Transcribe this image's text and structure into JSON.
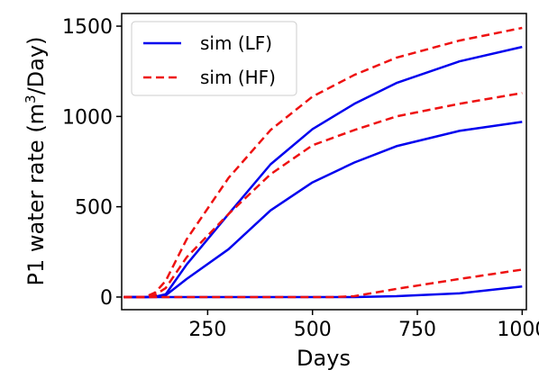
{
  "chart_data": {
    "type": "line",
    "xlabel": "Days",
    "ylabel_main": "P1 water rate (m",
    "ylabel_sup": "3",
    "ylabel_end": "/Day)",
    "xlim": [
      45,
      1010
    ],
    "ylim": [
      -70,
      1570
    ],
    "xticks": [
      250,
      500,
      750,
      1000
    ],
    "yticks": [
      0,
      500,
      1000,
      1500
    ],
    "grid": false,
    "legend_position": "top-left",
    "legend": [
      {
        "label": "sim (LF)",
        "color": "#0000ee",
        "style": "solid"
      },
      {
        "label": "sim (HF)",
        "color": "#ee1111",
        "style": "dashed"
      }
    ],
    "series": [
      {
        "group": "LF",
        "color": "#0000ee",
        "dashed": false,
        "x": [
          50,
          100,
          125,
          150,
          200,
          300,
          400,
          500,
          600,
          700,
          850,
          1000
        ],
        "y": [
          0,
          0,
          2,
          15,
          180,
          460,
          735,
          930,
          1070,
          1185,
          1305,
          1385
        ]
      },
      {
        "group": "LF",
        "color": "#0000ee",
        "dashed": false,
        "x": [
          50,
          100,
          125,
          150,
          200,
          300,
          400,
          500,
          600,
          700,
          850,
          1000
        ],
        "y": [
          0,
          0,
          1,
          10,
          100,
          265,
          480,
          635,
          745,
          835,
          920,
          970
        ]
      },
      {
        "group": "LF",
        "color": "#0000ee",
        "dashed": false,
        "x": [
          50,
          100,
          150,
          200,
          300,
          400,
          500,
          600,
          700,
          850,
          1000
        ],
        "y": [
          0,
          0,
          0,
          0,
          0,
          0,
          0,
          0,
          5,
          20,
          58
        ]
      },
      {
        "group": "HF",
        "color": "#ee1111",
        "dashed": true,
        "x": [
          50,
          100,
          125,
          150,
          200,
          300,
          400,
          500,
          600,
          700,
          850,
          1000
        ],
        "y": [
          0,
          0,
          25,
          90,
          320,
          660,
          925,
          1110,
          1230,
          1325,
          1420,
          1490
        ]
      },
      {
        "group": "HF",
        "color": "#ee1111",
        "dashed": true,
        "x": [
          50,
          100,
          125,
          150,
          200,
          300,
          400,
          500,
          600,
          700,
          850,
          1000
        ],
        "y": [
          0,
          0,
          12,
          50,
          220,
          460,
          680,
          840,
          925,
          1000,
          1070,
          1130
        ]
      },
      {
        "group": "HF",
        "color": "#ee1111",
        "dashed": true,
        "x": [
          50,
          100,
          150,
          200,
          300,
          400,
          500,
          550,
          600,
          700,
          850,
          1000
        ],
        "y": [
          0,
          0,
          0,
          0,
          0,
          0,
          0,
          0,
          5,
          45,
          100,
          152
        ]
      }
    ]
  }
}
